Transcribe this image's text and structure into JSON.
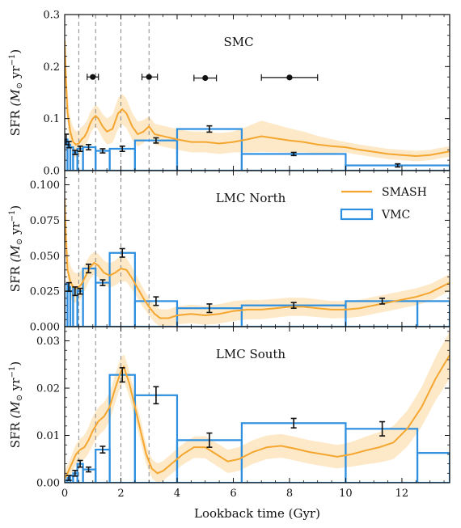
{
  "colors": {
    "smash": "#f4a630",
    "smash_band": "#fde9c7",
    "vmc": "#2e8fe0",
    "ticks_line": "#888888",
    "text": "#111111"
  },
  "legend": {
    "smash": "SMASH",
    "vmc": "VMC"
  },
  "xlabel": "Lookback time (Gyr)",
  "ylabel_main": "SFR",
  "ylabel_unit_prefix": "(M",
  "ylabel_unit_sub": "⊙",
  "ylabel_unit_mid": " yr",
  "ylabel_unit_sup": "−1",
  "ylabel_unit_suffix": ")",
  "x_ticks": [
    0,
    2,
    4,
    6,
    8,
    10,
    12
  ],
  "chart_data": [
    {
      "type": "bar",
      "name_label": "SMC",
      "xlim": [
        0,
        13.7
      ],
      "ylim": [
        0,
        0.3
      ],
      "y_ticks": [
        0.0,
        0.1,
        0.2,
        0.3
      ],
      "y_tick_labels": [
        "0.0",
        "0.1",
        "0.2",
        "0.3"
      ],
      "vmc_bins": [
        {
          "x0": 0.0,
          "x1": 0.1,
          "y": 0.06
        },
        {
          "x0": 0.1,
          "x1": 0.2,
          "y": 0.05
        },
        {
          "x0": 0.2,
          "x1": 0.3,
          "y": 0.045
        },
        {
          "x0": 0.3,
          "x1": 0.45,
          "y": 0.035
        },
        {
          "x0": 0.45,
          "x1": 0.65,
          "y": 0.042
        },
        {
          "x0": 0.65,
          "x1": 1.1,
          "y": 0.045
        },
        {
          "x0": 1.1,
          "x1": 1.6,
          "y": 0.038
        },
        {
          "x0": 1.6,
          "x1": 2.5,
          "y": 0.042
        },
        {
          "x0": 2.5,
          "x1": 4.0,
          "y": 0.058
        },
        {
          "x0": 4.0,
          "x1": 6.3,
          "y": 0.08
        },
        {
          "x0": 6.3,
          "x1": 10.0,
          "y": 0.032
        },
        {
          "x0": 10.0,
          "x1": 13.7,
          "y": 0.01
        }
      ],
      "vmc_points": [
        {
          "x": 0.05,
          "y": 0.06,
          "err": 0.01
        },
        {
          "x": 0.15,
          "y": 0.05,
          "err": 0.006
        },
        {
          "x": 0.37,
          "y": 0.035,
          "err": 0.004
        },
        {
          "x": 0.55,
          "y": 0.042,
          "err": 0.005
        },
        {
          "x": 0.85,
          "y": 0.045,
          "err": 0.005
        },
        {
          "x": 1.35,
          "y": 0.038,
          "err": 0.004
        },
        {
          "x": 2.05,
          "y": 0.042,
          "err": 0.005
        },
        {
          "x": 3.25,
          "y": 0.058,
          "err": 0.005
        },
        {
          "x": 5.15,
          "y": 0.08,
          "err": 0.006
        },
        {
          "x": 8.15,
          "y": 0.032,
          "err": 0.003
        },
        {
          "x": 11.85,
          "y": 0.01,
          "err": 0.003
        }
      ],
      "smash_curve": [
        [
          0.0,
          0.25
        ],
        [
          0.05,
          0.17
        ],
        [
          0.1,
          0.11
        ],
        [
          0.2,
          0.075
        ],
        [
          0.3,
          0.055
        ],
        [
          0.4,
          0.05
        ],
        [
          0.5,
          0.052
        ],
        [
          0.6,
          0.06
        ],
        [
          0.7,
          0.065
        ],
        [
          0.8,
          0.075
        ],
        [
          0.9,
          0.09
        ],
        [
          1.0,
          0.1
        ],
        [
          1.1,
          0.105
        ],
        [
          1.2,
          0.1
        ],
        [
          1.35,
          0.085
        ],
        [
          1.5,
          0.075
        ],
        [
          1.7,
          0.08
        ],
        [
          1.9,
          0.11
        ],
        [
          2.05,
          0.118
        ],
        [
          2.2,
          0.11
        ],
        [
          2.4,
          0.085
        ],
        [
          2.6,
          0.07
        ],
        [
          2.8,
          0.075
        ],
        [
          3.0,
          0.085
        ],
        [
          3.2,
          0.07
        ],
        [
          3.6,
          0.065
        ],
        [
          4.0,
          0.06
        ],
        [
          4.5,
          0.055
        ],
        [
          5.0,
          0.055
        ],
        [
          5.5,
          0.052
        ],
        [
          6.0,
          0.055
        ],
        [
          6.5,
          0.06
        ],
        [
          7.0,
          0.066
        ],
        [
          7.5,
          0.062
        ],
        [
          8.0,
          0.058
        ],
        [
          8.5,
          0.055
        ],
        [
          9.0,
          0.05
        ],
        [
          9.5,
          0.047
        ],
        [
          10.0,
          0.045
        ],
        [
          10.5,
          0.04
        ],
        [
          11.0,
          0.036
        ],
        [
          11.5,
          0.032
        ],
        [
          12.0,
          0.03
        ],
        [
          12.5,
          0.028
        ],
        [
          13.0,
          0.03
        ],
        [
          13.7,
          0.037
        ]
      ],
      "smash_band_half_width": [
        [
          0.0,
          0.03
        ],
        [
          1.0,
          0.02
        ],
        [
          2.0,
          0.03
        ],
        [
          3.0,
          0.02
        ],
        [
          6.0,
          0.02
        ],
        [
          7.0,
          0.03
        ],
        [
          10.0,
          0.01
        ],
        [
          13.7,
          0.01
        ]
      ],
      "age_bars": [
        {
          "x": 1.0,
          "y": 0.18,
          "xmin": 0.8,
          "xmax": 1.2
        },
        {
          "x": 3.0,
          "y": 0.18,
          "xmin": 2.75,
          "xmax": 3.3
        },
        {
          "x": 5.0,
          "y": 0.178,
          "xmin": 4.6,
          "xmax": 5.4
        },
        {
          "x": 8.0,
          "y": 0.179,
          "xmin": 7.0,
          "xmax": 9.0
        }
      ]
    },
    {
      "type": "bar",
      "name_label": "LMC North",
      "xlim": [
        0,
        13.7
      ],
      "ylim": [
        0,
        0.11
      ],
      "y_ticks": [
        0.0,
        0.025,
        0.05,
        0.075,
        0.1
      ],
      "y_tick_labels": [
        "0.000",
        "0.025",
        "0.050",
        "0.075",
        "0.100"
      ],
      "vmc_bins": [
        {
          "x0": 0.0,
          "x1": 0.1,
          "y": 0.03
        },
        {
          "x0": 0.1,
          "x1": 0.2,
          "y": 0.028
        },
        {
          "x0": 0.2,
          "x1": 0.3,
          "y": 0.025
        },
        {
          "x0": 0.3,
          "x1": 0.45,
          "y": 0.027
        },
        {
          "x0": 0.45,
          "x1": 0.65,
          "y": 0.025
        },
        {
          "x0": 0.65,
          "x1": 1.1,
          "y": 0.041
        },
        {
          "x0": 1.1,
          "x1": 1.6,
          "y": 0.031
        },
        {
          "x0": 1.6,
          "x1": 2.5,
          "y": 0.052
        },
        {
          "x0": 2.5,
          "x1": 4.0,
          "y": 0.018
        },
        {
          "x0": 4.0,
          "x1": 6.3,
          "y": 0.013
        },
        {
          "x0": 6.3,
          "x1": 10.0,
          "y": 0.015
        },
        {
          "x0": 10.0,
          "x1": 12.55,
          "y": 0.018
        },
        {
          "x0": 12.55,
          "x1": 13.7,
          "y": 0.018
        }
      ],
      "vmc_points": [
        {
          "x": 0.15,
          "y": 0.028,
          "err": 0.003
        },
        {
          "x": 0.37,
          "y": 0.025,
          "err": 0.003
        },
        {
          "x": 0.55,
          "y": 0.025,
          "err": 0.002
        },
        {
          "x": 0.85,
          "y": 0.041,
          "err": 0.003
        },
        {
          "x": 1.35,
          "y": 0.031,
          "err": 0.002
        },
        {
          "x": 2.05,
          "y": 0.052,
          "err": 0.003
        },
        {
          "x": 3.25,
          "y": 0.018,
          "err": 0.003
        },
        {
          "x": 5.15,
          "y": 0.013,
          "err": 0.003
        },
        {
          "x": 8.15,
          "y": 0.015,
          "err": 0.002
        },
        {
          "x": 11.3,
          "y": 0.018,
          "err": 0.002
        }
      ],
      "smash_curve": [
        [
          0.0,
          0.09
        ],
        [
          0.05,
          0.06
        ],
        [
          0.1,
          0.04
        ],
        [
          0.2,
          0.032
        ],
        [
          0.3,
          0.028
        ],
        [
          0.45,
          0.027
        ],
        [
          0.6,
          0.03
        ],
        [
          0.75,
          0.036
        ],
        [
          0.9,
          0.042
        ],
        [
          1.05,
          0.045
        ],
        [
          1.2,
          0.043
        ],
        [
          1.4,
          0.038
        ],
        [
          1.6,
          0.036
        ],
        [
          1.8,
          0.038
        ],
        [
          2.0,
          0.041
        ],
        [
          2.2,
          0.04
        ],
        [
          2.4,
          0.034
        ],
        [
          2.6,
          0.027
        ],
        [
          2.8,
          0.02
        ],
        [
          3.0,
          0.014
        ],
        [
          3.2,
          0.009
        ],
        [
          3.4,
          0.006
        ],
        [
          3.7,
          0.006
        ],
        [
          4.0,
          0.008
        ],
        [
          4.5,
          0.009
        ],
        [
          5.0,
          0.008
        ],
        [
          5.5,
          0.009
        ],
        [
          6.0,
          0.011
        ],
        [
          6.5,
          0.012
        ],
        [
          7.0,
          0.012
        ],
        [
          7.5,
          0.013
        ],
        [
          8.0,
          0.014
        ],
        [
          8.5,
          0.014
        ],
        [
          9.0,
          0.013
        ],
        [
          9.5,
          0.012
        ],
        [
          10.0,
          0.012
        ],
        [
          10.5,
          0.013
        ],
        [
          11.0,
          0.015
        ],
        [
          11.5,
          0.017
        ],
        [
          12.0,
          0.019
        ],
        [
          12.5,
          0.021
        ],
        [
          13.0,
          0.024
        ],
        [
          13.4,
          0.028
        ],
        [
          13.7,
          0.031
        ]
      ],
      "smash_band_half_width": [
        [
          0.0,
          0.012
        ],
        [
          1.0,
          0.008
        ],
        [
          2.0,
          0.009
        ],
        [
          3.0,
          0.006
        ],
        [
          6.0,
          0.007
        ],
        [
          10.0,
          0.006
        ],
        [
          13.7,
          0.006
        ]
      ]
    },
    {
      "type": "bar",
      "name_label": "LMC South",
      "xlim": [
        0,
        13.7
      ],
      "ylim": [
        0,
        0.033
      ],
      "y_ticks": [
        0.0,
        0.01,
        0.02,
        0.03
      ],
      "y_tick_labels": [
        "0.00",
        "0.01",
        "0.02",
        "0.03"
      ],
      "vmc_bins": [
        {
          "x0": 0.0,
          "x1": 0.1,
          "y": 0.0005
        },
        {
          "x0": 0.1,
          "x1": 0.2,
          "y": 0.001
        },
        {
          "x0": 0.2,
          "x1": 0.3,
          "y": 0.0015
        },
        {
          "x0": 0.3,
          "x1": 0.45,
          "y": 0.002
        },
        {
          "x0": 0.45,
          "x1": 0.65,
          "y": 0.004
        },
        {
          "x0": 0.65,
          "x1": 1.1,
          "y": 0.0028
        },
        {
          "x0": 1.1,
          "x1": 1.6,
          "y": 0.007
        },
        {
          "x0": 1.6,
          "x1": 2.5,
          "y": 0.0228
        },
        {
          "x0": 2.5,
          "x1": 4.0,
          "y": 0.0185
        },
        {
          "x0": 4.0,
          "x1": 6.3,
          "y": 0.009
        },
        {
          "x0": 6.3,
          "x1": 10.0,
          "y": 0.0126
        },
        {
          "x0": 10.0,
          "x1": 12.55,
          "y": 0.0114
        },
        {
          "x0": 12.55,
          "x1": 13.7,
          "y": 0.0063
        }
      ],
      "vmc_points": [
        {
          "x": 0.15,
          "y": 0.001,
          "err": 0.0005
        },
        {
          "x": 0.37,
          "y": 0.002,
          "err": 0.0006
        },
        {
          "x": 0.55,
          "y": 0.004,
          "err": 0.0007
        },
        {
          "x": 0.85,
          "y": 0.0028,
          "err": 0.0005
        },
        {
          "x": 1.35,
          "y": 0.007,
          "err": 0.0007
        },
        {
          "x": 2.05,
          "y": 0.0228,
          "err": 0.0015
        },
        {
          "x": 3.25,
          "y": 0.0185,
          "err": 0.0018
        },
        {
          "x": 5.15,
          "y": 0.009,
          "err": 0.0015
        },
        {
          "x": 8.15,
          "y": 0.0126,
          "err": 0.001
        },
        {
          "x": 11.3,
          "y": 0.0114,
          "err": 0.0015
        }
      ],
      "smash_curve": [
        [
          0.0,
          0.001
        ],
        [
          0.1,
          0.002
        ],
        [
          0.25,
          0.004
        ],
        [
          0.4,
          0.006
        ],
        [
          0.55,
          0.007
        ],
        [
          0.7,
          0.0075
        ],
        [
          0.85,
          0.009
        ],
        [
          1.0,
          0.011
        ],
        [
          1.2,
          0.013
        ],
        [
          1.4,
          0.014
        ],
        [
          1.6,
          0.016
        ],
        [
          1.8,
          0.02
        ],
        [
          2.0,
          0.0235
        ],
        [
          2.1,
          0.0245
        ],
        [
          2.3,
          0.021
        ],
        [
          2.5,
          0.016
        ],
        [
          2.7,
          0.011
        ],
        [
          2.9,
          0.006
        ],
        [
          3.1,
          0.003
        ],
        [
          3.3,
          0.002
        ],
        [
          3.5,
          0.0025
        ],
        [
          3.8,
          0.004
        ],
        [
          4.2,
          0.006
        ],
        [
          4.6,
          0.0075
        ],
        [
          5.0,
          0.0075
        ],
        [
          5.4,
          0.006
        ],
        [
          5.8,
          0.0045
        ],
        [
          6.2,
          0.005
        ],
        [
          6.7,
          0.0065
        ],
        [
          7.2,
          0.0075
        ],
        [
          7.7,
          0.0078
        ],
        [
          8.2,
          0.0072
        ],
        [
          8.7,
          0.0065
        ],
        [
          9.2,
          0.006
        ],
        [
          9.7,
          0.0055
        ],
        [
          10.2,
          0.006
        ],
        [
          10.7,
          0.0068
        ],
        [
          11.2,
          0.0075
        ],
        [
          11.7,
          0.0085
        ],
        [
          12.2,
          0.0115
        ],
        [
          12.7,
          0.016
        ],
        [
          13.2,
          0.022
        ],
        [
          13.7,
          0.027
        ]
      ],
      "smash_band_half_width": [
        [
          0.0,
          0.0015
        ],
        [
          1.0,
          0.003
        ],
        [
          2.0,
          0.003
        ],
        [
          3.0,
          0.002
        ],
        [
          6.0,
          0.0025
        ],
        [
          10.0,
          0.0025
        ],
        [
          12.5,
          0.004
        ],
        [
          13.7,
          0.005
        ]
      ]
    }
  ],
  "dashed_lines_x": [
    0.5,
    1.1,
    2.0,
    3.0
  ]
}
